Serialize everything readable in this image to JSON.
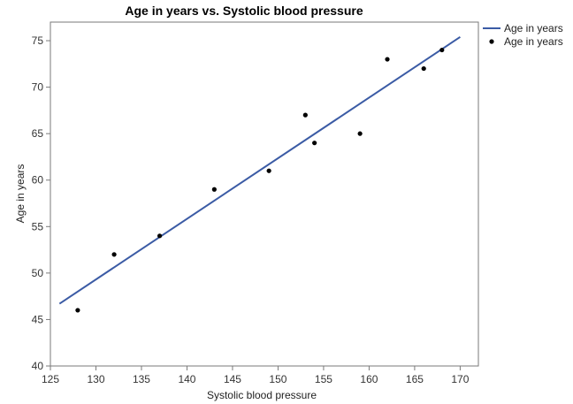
{
  "chart_data": {
    "type": "scatter",
    "title": "Age in years vs. Systolic blood pressure",
    "xlabel": "Systolic blood pressure",
    "ylabel": "Age in years",
    "xlim": [
      125,
      172
    ],
    "ylim": [
      40,
      77
    ],
    "xticks": [
      "125",
      "130",
      "135",
      "140",
      "145",
      "150",
      "155",
      "160",
      "165",
      "170"
    ],
    "yticks": [
      "40",
      "45",
      "50",
      "55",
      "60",
      "65",
      "70",
      "75"
    ],
    "grid": false,
    "legend_position": "top-right outside",
    "series": [
      {
        "name": "Age in years",
        "kind": "line",
        "color": "#3B5BA5",
        "x": [
          126,
          170
        ],
        "y": [
          46.7,
          75.4
        ]
      },
      {
        "name": "Age in years",
        "kind": "scatter",
        "color": "#000000",
        "x": [
          128,
          132,
          137,
          143,
          149,
          153,
          154,
          159,
          162,
          166,
          168
        ],
        "y": [
          46,
          52,
          54,
          59,
          61,
          67,
          64,
          65,
          73,
          72,
          74
        ]
      }
    ]
  }
}
